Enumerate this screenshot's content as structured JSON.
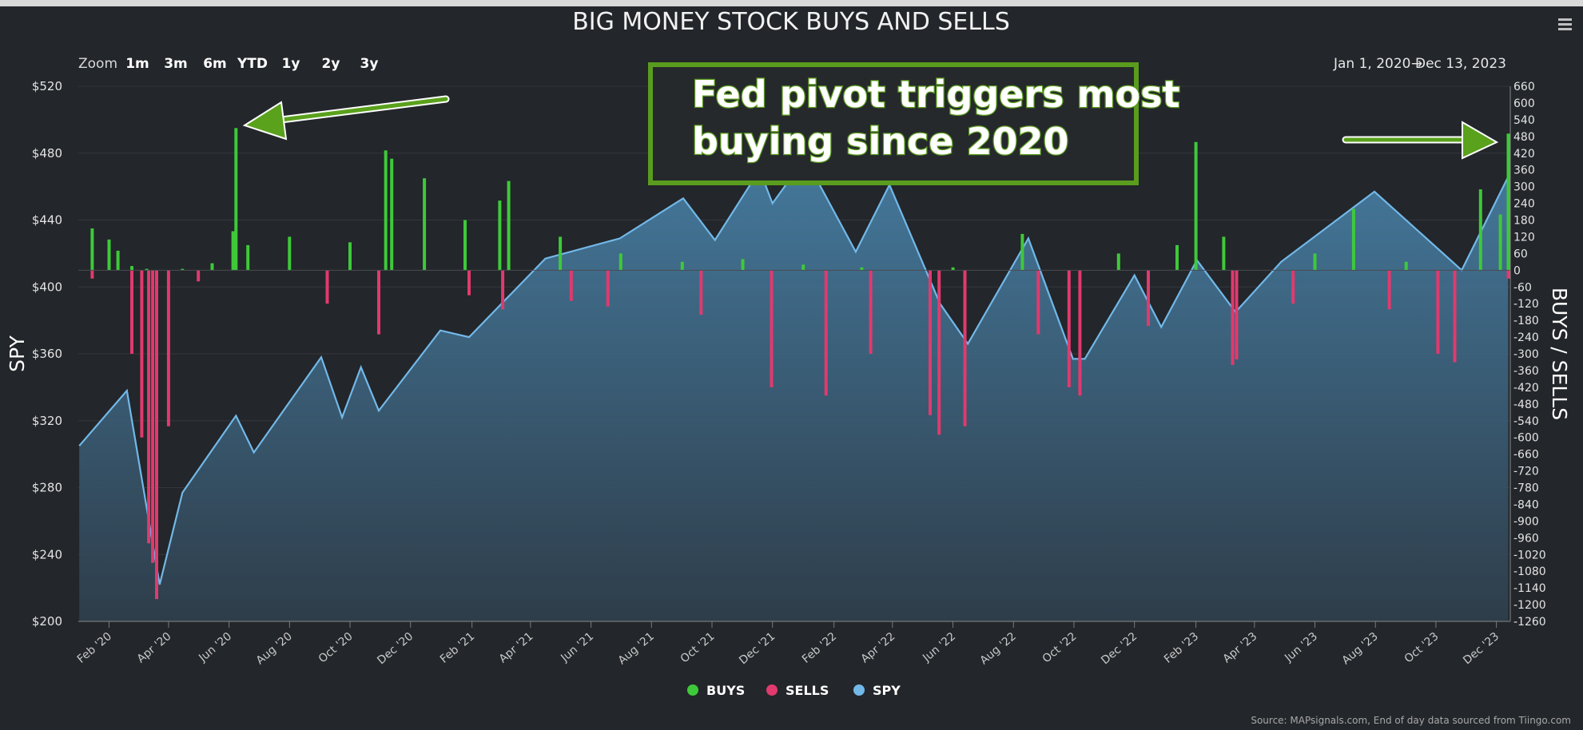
{
  "chart_data": {
    "type": "bar",
    "title": "BIG MONEY STOCK BUYS AND SELLS",
    "ylabel_left": "SPY",
    "ylabel_right": "BUYS / SELLS",
    "ylim_left": [
      200,
      520
    ],
    "ylim_right": [
      -1260,
      660
    ],
    "y_ticks_left": [
      "$200",
      "$240",
      "$280",
      "$320",
      "$360",
      "$400",
      "$440",
      "$480",
      "$520"
    ],
    "y_ticks_right": [
      "660",
      "600",
      "540",
      "480",
      "420",
      "360",
      "300",
      "240",
      "180",
      "120",
      "60",
      "0",
      "-60",
      "-120",
      "-180",
      "-240",
      "-300",
      "-360",
      "-420",
      "-480",
      "-540",
      "-600",
      "-660",
      "-720",
      "-780",
      "-840",
      "-900",
      "-960",
      "-1020",
      "-1080",
      "-1140",
      "-1200",
      "-1260"
    ],
    "x_tick_labels": [
      "Feb '20",
      "Apr '20",
      "Jun '20",
      "Aug '20",
      "Oct '20",
      "Dec '20",
      "Feb '21",
      "Apr '21",
      "Jun '21",
      "Aug '21",
      "Oct '21",
      "Dec '21",
      "Feb '22",
      "Apr '22",
      "Jun '22",
      "Aug '22",
      "Oct '22",
      "Dec '22",
      "Feb '23",
      "Apr '23",
      "Jun '23",
      "Aug '23",
      "Oct '23",
      "Dec '23"
    ],
    "date_range": {
      "start": "Jan 1, 2020",
      "arrow": "→",
      "end": "Dec 13, 2023"
    },
    "zoom": {
      "label": "Zoom",
      "options": [
        "1m",
        "3m",
        "6m",
        "YTD",
        "1y",
        "2y",
        "3y"
      ]
    },
    "legend_position": "bottom-center",
    "series": [
      {
        "name": "BUYS",
        "type": "bar",
        "color": "#3ec93a",
        "points": [
          [
            "2020-01-15",
            150
          ],
          [
            "2020-02-01",
            110
          ],
          [
            "2020-02-10",
            70
          ],
          [
            "2020-02-24",
            15
          ],
          [
            "2020-03-10",
            5
          ],
          [
            "2020-04-15",
            5
          ],
          [
            "2020-05-15",
            25
          ],
          [
            "2020-06-05",
            140
          ],
          [
            "2020-06-08",
            510
          ],
          [
            "2020-06-20",
            90
          ],
          [
            "2020-08-01",
            120
          ],
          [
            "2020-10-01",
            100
          ],
          [
            "2020-11-06",
            430
          ],
          [
            "2020-11-12",
            400
          ],
          [
            "2020-12-15",
            330
          ],
          [
            "2021-01-25",
            180
          ],
          [
            "2021-03-01",
            250
          ],
          [
            "2021-03-10",
            320
          ],
          [
            "2021-05-01",
            120
          ],
          [
            "2021-07-01",
            60
          ],
          [
            "2021-09-01",
            30
          ],
          [
            "2021-11-01",
            40
          ],
          [
            "2022-01-01",
            20
          ],
          [
            "2022-03-01",
            10
          ],
          [
            "2022-06-01",
            10
          ],
          [
            "2022-08-10",
            130
          ],
          [
            "2022-11-15",
            60
          ],
          [
            "2023-01-13",
            90
          ],
          [
            "2023-02-01",
            460
          ],
          [
            "2023-03-01",
            120
          ],
          [
            "2023-06-01",
            60
          ],
          [
            "2023-07-10",
            220
          ],
          [
            "2023-09-01",
            30
          ],
          [
            "2023-11-15",
            290
          ],
          [
            "2023-12-05",
            200
          ],
          [
            "2023-12-13",
            490
          ]
        ]
      },
      {
        "name": "SELLS",
        "type": "bar",
        "color": "#e03a6e",
        "points": [
          [
            "2020-01-15",
            -30
          ],
          [
            "2020-02-24",
            -300
          ],
          [
            "2020-03-05",
            -600
          ],
          [
            "2020-03-12",
            -980
          ],
          [
            "2020-03-16",
            -1050
          ],
          [
            "2020-03-20",
            -1180
          ],
          [
            "2020-04-01",
            -560
          ],
          [
            "2020-05-01",
            -40
          ],
          [
            "2020-09-08",
            -120
          ],
          [
            "2020-10-30",
            -230
          ],
          [
            "2021-01-29",
            -90
          ],
          [
            "2021-03-04",
            -140
          ],
          [
            "2021-05-12",
            -110
          ],
          [
            "2021-06-18",
            -130
          ],
          [
            "2021-09-20",
            -160
          ],
          [
            "2021-11-30",
            -420
          ],
          [
            "2022-01-24",
            -450
          ],
          [
            "2022-03-10",
            -300
          ],
          [
            "2022-05-09",
            -520
          ],
          [
            "2022-05-18",
            -590
          ],
          [
            "2022-06-13",
            -560
          ],
          [
            "2022-08-26",
            -230
          ],
          [
            "2022-09-26",
            -420
          ],
          [
            "2022-10-07",
            -450
          ],
          [
            "2022-12-15",
            -200
          ],
          [
            "2023-03-10",
            -340
          ],
          [
            "2023-03-14",
            -320
          ],
          [
            "2023-05-10",
            -120
          ],
          [
            "2023-08-15",
            -140
          ],
          [
            "2023-10-03",
            -300
          ],
          [
            "2023-10-20",
            -330
          ],
          [
            "2023-12-13",
            -30
          ]
        ]
      },
      {
        "name": "SPY",
        "type": "area",
        "color": "#72b8e8",
        "points": [
          [
            "2020-01-02",
            305
          ],
          [
            "2020-02-19",
            338
          ],
          [
            "2020-03-23",
            222
          ],
          [
            "2020-04-15",
            277
          ],
          [
            "2020-06-08",
            323
          ],
          [
            "2020-06-26",
            301
          ],
          [
            "2020-09-02",
            358
          ],
          [
            "2020-09-23",
            322
          ],
          [
            "2020-10-12",
            352
          ],
          [
            "2020-10-30",
            326
          ],
          [
            "2020-12-31",
            374
          ],
          [
            "2021-01-29",
            370
          ],
          [
            "2021-04-16",
            417
          ],
          [
            "2021-06-30",
            429
          ],
          [
            "2021-09-02",
            453
          ],
          [
            "2021-10-04",
            428
          ],
          [
            "2021-11-18",
            470
          ],
          [
            "2021-12-01",
            450
          ],
          [
            "2022-01-03",
            477
          ],
          [
            "2022-02-23",
            421
          ],
          [
            "2022-03-29",
            461
          ],
          [
            "2022-05-19",
            390
          ],
          [
            "2022-06-16",
            366
          ],
          [
            "2022-08-16",
            429
          ],
          [
            "2022-09-30",
            357
          ],
          [
            "2022-10-12",
            357
          ],
          [
            "2022-12-01",
            407
          ],
          [
            "2022-12-28",
            376
          ],
          [
            "2023-02-02",
            416
          ],
          [
            "2023-03-13",
            385
          ],
          [
            "2023-04-28",
            415
          ],
          [
            "2023-07-31",
            457
          ],
          [
            "2023-10-27",
            410
          ],
          [
            "2023-12-13",
            466
          ]
        ]
      }
    ]
  },
  "annotation": {
    "line1": "Fed pivot triggers most",
    "line2": "buying since 2020",
    "box_color": "#5a9c1e"
  },
  "legend": [
    {
      "label": "BUYS",
      "color": "#3ec93a"
    },
    {
      "label": "SELLS",
      "color": "#e03a6e"
    },
    {
      "label": "SPY",
      "color": "#72b8e8"
    }
  ],
  "source": "Source: MAPsignals.com, End of day data sourced from Tiingo.com",
  "menu_icon": "hamburger-menu-icon"
}
